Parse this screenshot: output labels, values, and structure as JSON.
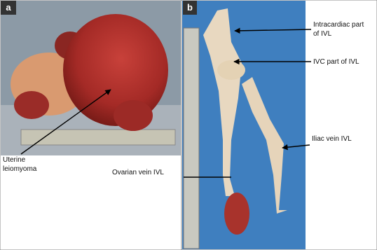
{
  "panels": [
    {
      "label": "a",
      "annotations": [
        {
          "lines": [
            "Uterine",
            "leiomyoma"
          ]
        },
        {
          "lines": [
            "Ovarian vein IVL"
          ]
        }
      ]
    },
    {
      "label": "b",
      "annotations": [
        {
          "lines": [
            "Intracardiac part",
            "of IVL"
          ]
        },
        {
          "lines": [
            "IVC part of IVL"
          ]
        },
        {
          "lines": [
            "Iliac vein IVL"
          ]
        }
      ]
    }
  ]
}
